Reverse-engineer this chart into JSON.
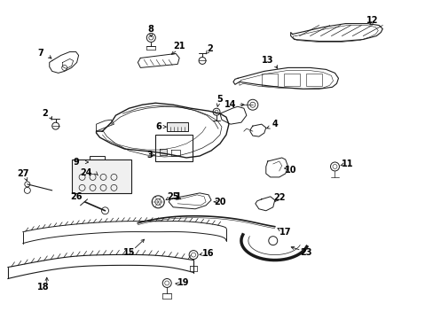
{
  "bg_color": "#ffffff",
  "line_color": "#1a1a1a",
  "text_color": "#000000",
  "figsize": [
    4.89,
    3.6
  ],
  "dpi": 100
}
